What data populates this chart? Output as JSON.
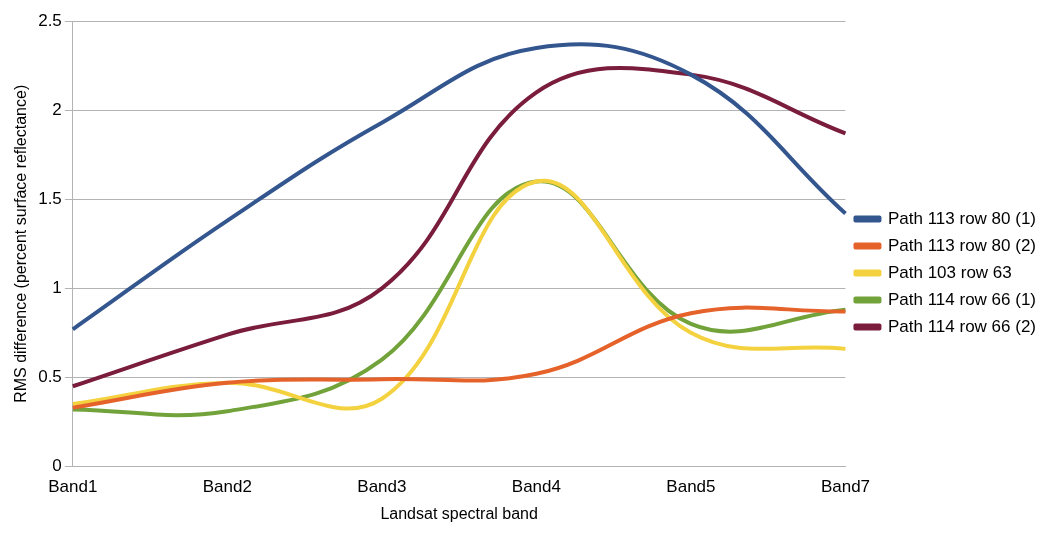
{
  "chart_data": {
    "type": "line",
    "xlabel": "Landsat spectral band",
    "ylabel": "RMS difference (percent surface reflectance)",
    "categories": [
      "Band1",
      "Band2",
      "Band3",
      "Band4",
      "Band5",
      "Band7"
    ],
    "ylim": [
      0,
      2.5
    ],
    "yticks": [
      0,
      0.5,
      1,
      1.5,
      2,
      2.5
    ],
    "grid": "y",
    "legend": "right",
    "marker": "none",
    "series": [
      {
        "name": "Path 113 row 80 (1)",
        "color": "#34568f",
        "values": [
          0.77,
          1.38,
          1.93,
          2.35,
          2.2,
          1.42
        ]
      },
      {
        "name": "Path 113 row 80 (2)",
        "color": "#e5622b",
        "values": [
          0.33,
          0.47,
          0.49,
          0.52,
          0.86,
          0.87
        ]
      },
      {
        "name": "Path 103 row 63",
        "color": "#f4d23f",
        "values": [
          0.35,
          0.47,
          0.38,
          1.6,
          0.75,
          0.66
        ]
      },
      {
        "name": "Path 114 row 66 (1)",
        "color": "#72a23a",
        "values": [
          0.32,
          0.31,
          0.6,
          1.6,
          0.8,
          0.88
        ]
      },
      {
        "name": "Path 114 row 66 (2)",
        "color": "#7a1c3c",
        "values": [
          0.45,
          0.74,
          1.0,
          2.1,
          2.2,
          1.87
        ]
      }
    ]
  }
}
